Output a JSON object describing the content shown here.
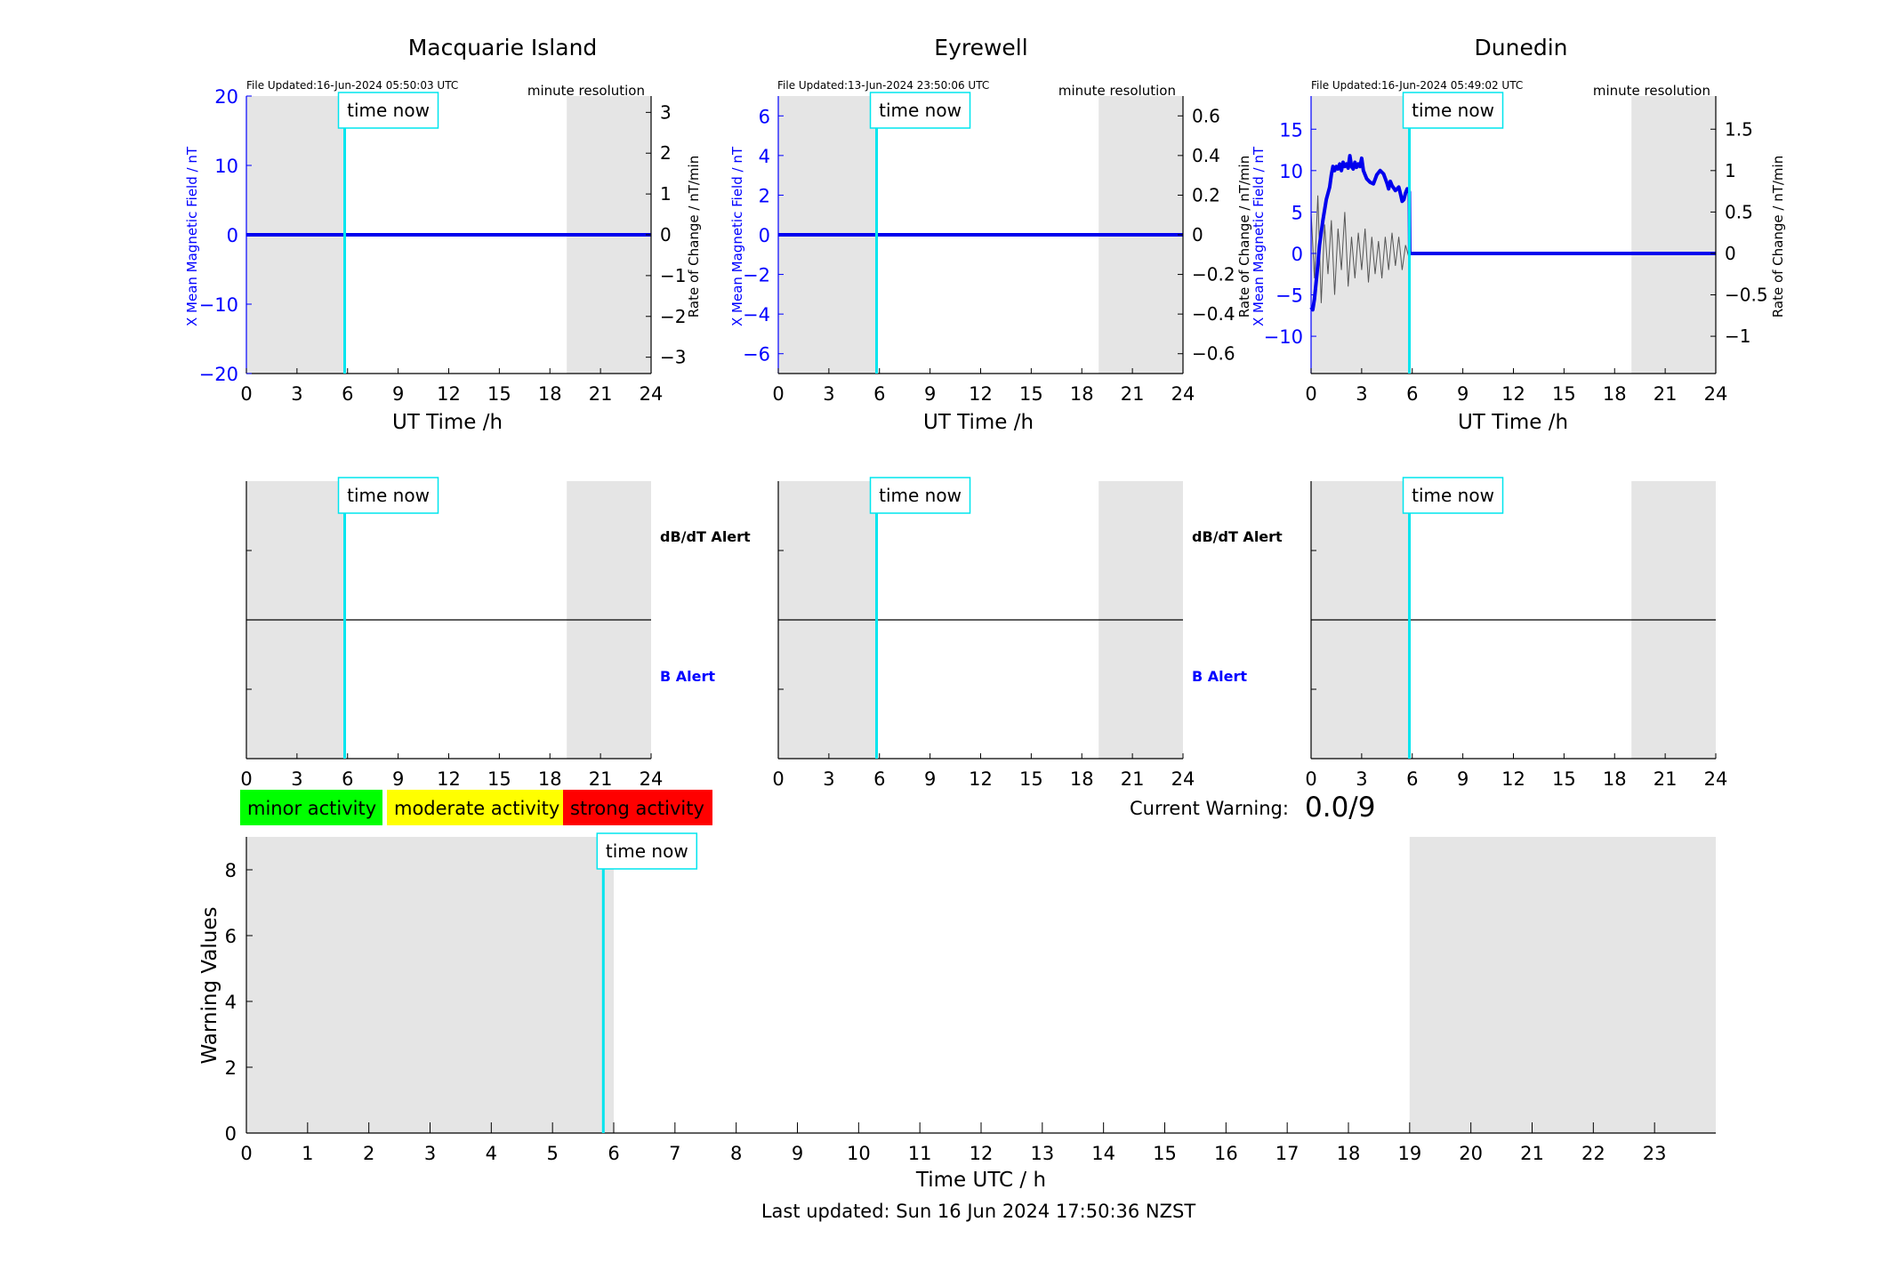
{
  "time_now_label": "time now",
  "time_now_hours": 5.83,
  "footer": "Last updated: Sun 16 Jun 2024 17:50:36 NZST",
  "colors": {
    "b_series": "#0000ee",
    "rate_series": "#555555",
    "time_now": "#00e5ee",
    "night_shade": "#e5e5e5",
    "b_axis_text": "#0000ff",
    "minor": "#00ff00",
    "moderate": "#ffff00",
    "strong": "#ff0000"
  },
  "legend": {
    "minor": "minor activity",
    "moderate": "moderate activity",
    "strong": "strong activity"
  },
  "current_warning": {
    "label": "Current Warning:",
    "value": "0.0/9"
  },
  "stations": [
    {
      "name": "Macquarie Island",
      "file_updated": "File Updated:16-Jun-2024 05:50:03 UTC",
      "resolution": "minute resolution",
      "xlabel": "UT Time /h",
      "ylabel_left": "X Mean Magnetic Field / nT",
      "ylabel_right": "Rate of Change / nT/min",
      "alert_dbdt": "dB/dT Alert",
      "alert_b": "B Alert"
    },
    {
      "name": "Eyrewell",
      "file_updated": "File Updated:13-Jun-2024 23:50:06 UTC",
      "resolution": "minute resolution",
      "xlabel": "UT Time /h",
      "ylabel_left": "X Mean Magnetic Field / nT",
      "ylabel_right": "",
      "alert_dbdt": "dB/dT Alert",
      "alert_b": "B Alert"
    },
    {
      "name": "Dunedin",
      "file_updated": "File Updated:16-Jun-2024 05:49:02 UTC",
      "resolution": "minute resolution",
      "xlabel": "UT Time /h",
      "ylabel_left": "X Mean Magnetic Field / nT",
      "ylabel_right": "Rate of Change / nT/min",
      "ylabel_right_overlap": "Rate of Change / nT/min",
      "alert_dbdt": "",
      "alert_b": ""
    }
  ],
  "chart_data": [
    {
      "type": "line",
      "title": "Macquarie Island",
      "xlabel": "UT Time /h",
      "ylabel": "X Mean Magnetic Field / nT",
      "y2label": "Rate of Change / nT/min",
      "xlim": [
        0,
        24
      ],
      "ylim": [
        -20,
        20
      ],
      "y2lim": [
        -3.4,
        3.4
      ],
      "xticks": [
        0,
        3,
        6,
        9,
        12,
        15,
        18,
        21,
        24
      ],
      "yticks": [
        -20,
        -10,
        0,
        10,
        20
      ],
      "y2ticks": [
        -3,
        -2,
        -1,
        0,
        1,
        2,
        3
      ],
      "shaded_ranges": [
        [
          0,
          5.83
        ],
        [
          19,
          24
        ]
      ],
      "series": [
        {
          "x": [
            0,
            24
          ],
          "y": [
            0,
            0
          ]
        }
      ]
    },
    {
      "type": "line",
      "title": "Eyrewell",
      "xlabel": "UT Time /h",
      "ylabel": "X Mean Magnetic Field / nT",
      "xlim": [
        0,
        24
      ],
      "ylim": [
        -7,
        7
      ],
      "y2lim": [
        -0.7,
        0.7
      ],
      "xticks": [
        0,
        3,
        6,
        9,
        12,
        15,
        18,
        21,
        24
      ],
      "yticks": [
        -6,
        -4,
        -2,
        0,
        2,
        4,
        6
      ],
      "y2ticks": [
        -0.6,
        -0.4,
        -0.2,
        0,
        0.2,
        0.4,
        0.6
      ],
      "shaded_ranges": [
        [
          0,
          5.83
        ],
        [
          19,
          24
        ]
      ],
      "series": [
        {
          "x": [
            0,
            24
          ],
          "y": [
            0,
            0
          ]
        }
      ]
    },
    {
      "type": "line",
      "title": "Dunedin",
      "xlabel": "UT Time /h",
      "ylabel": "X Mean Magnetic Field / nT",
      "y2label": "Rate of Change / nT/min",
      "xlim": [
        0,
        24
      ],
      "ylim": [
        -14.5,
        19
      ],
      "y2lim": [
        -1.45,
        1.9
      ],
      "xticks": [
        0,
        3,
        6,
        9,
        12,
        15,
        18,
        21,
        24
      ],
      "yticks": [
        -10,
        -5,
        0,
        5,
        10,
        15
      ],
      "y2ticks": [
        -1,
        -0.5,
        0,
        0.5,
        1,
        1.5
      ],
      "shaded_ranges": [
        [
          0,
          5.83
        ],
        [
          19,
          24
        ]
      ],
      "series": [
        {
          "x": [
            0,
            0.1,
            0.2,
            0.35,
            0.5,
            0.7,
            0.9,
            1.1,
            1.2,
            1.3,
            1.4,
            1.5,
            1.6,
            1.7,
            1.8,
            1.9,
            2.0,
            2.1,
            2.2,
            2.3,
            2.4,
            2.5,
            2.6,
            2.7,
            2.8,
            2.9,
            3.0,
            3.1,
            3.2,
            3.3,
            3.5,
            3.7,
            3.9,
            4.1,
            4.3,
            4.5,
            4.6,
            4.7,
            4.8,
            5.0,
            5.2,
            5.3,
            5.4,
            5.5,
            5.6,
            5.7,
            5.8,
            5.83,
            5.85,
            24
          ],
          "y": [
            -6.5,
            -6.8,
            -5.5,
            -2.5,
            1,
            4,
            6.5,
            8,
            9.5,
            10.5,
            10,
            10.5,
            10.2,
            10.8,
            10,
            11,
            10.5,
            10.8,
            10.3,
            11.8,
            10.5,
            10.2,
            11,
            10.4,
            10.8,
            10.5,
            11.5,
            10,
            9.5,
            9,
            8.6,
            8.4,
            9.5,
            10,
            9.6,
            8.5,
            7.8,
            8.7,
            8.2,
            7.6,
            8,
            7.2,
            6.3,
            6.5,
            7.3,
            7.8,
            7.6,
            7.4,
            0,
            0
          ]
        },
        {
          "name": "rate",
          "x": [
            0,
            0.2,
            0.4,
            0.6,
            0.8,
            1.0,
            1.2,
            1.4,
            1.6,
            1.8,
            2.0,
            2.2,
            2.4,
            2.6,
            2.8,
            3.0,
            3.2,
            3.4,
            3.6,
            3.8,
            4.0,
            4.2,
            4.4,
            4.6,
            4.8,
            5.0,
            5.2,
            5.4,
            5.6,
            5.8
          ],
          "y": [
            0.5,
            -0.3,
            0.7,
            -0.6,
            0.35,
            -0.25,
            0.4,
            -0.5,
            0.3,
            -0.2,
            0.5,
            -0.4,
            0.2,
            -0.3,
            0.25,
            -0.2,
            0.3,
            -0.35,
            0.2,
            -0.25,
            0.15,
            -0.3,
            0.2,
            -0.2,
            0.25,
            -0.15,
            0.2,
            -0.2,
            0.1,
            -0.05
          ]
        }
      ]
    },
    {
      "type": "line",
      "title": "",
      "alert_panels": 3,
      "xlim": [
        0,
        24
      ],
      "xticks": [
        0,
        3,
        6,
        9,
        12,
        15,
        18,
        21,
        24
      ],
      "shaded_ranges": [
        [
          0,
          5.83
        ],
        [
          19,
          24
        ]
      ],
      "series": []
    },
    {
      "type": "bar",
      "xlabel": "Time UTC / h",
      "ylabel": "Warning Values",
      "xlim": [
        0,
        24
      ],
      "ylim": [
        0,
        9
      ],
      "xticks": [
        0,
        1,
        2,
        3,
        4,
        5,
        6,
        7,
        8,
        9,
        10,
        11,
        12,
        13,
        14,
        15,
        16,
        17,
        18,
        19,
        20,
        21,
        22,
        23
      ],
      "yticks": [
        0,
        2,
        4,
        6,
        8
      ],
      "shaded_ranges": [
        [
          0,
          6
        ],
        [
          19,
          24
        ]
      ],
      "series": [
        {
          "values": [
            0,
            0,
            0,
            0,
            0,
            0,
            0,
            0,
            0,
            0,
            0,
            0,
            0,
            0,
            0,
            0,
            0,
            0,
            0,
            0,
            0,
            0,
            0,
            0
          ]
        }
      ]
    }
  ]
}
